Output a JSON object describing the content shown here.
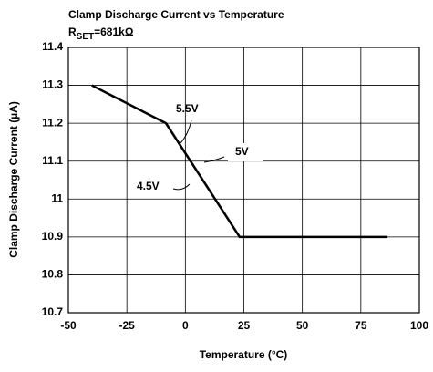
{
  "chart_data": {
    "type": "line",
    "title": "Clamp Discharge Current vs Temperature",
    "subtitle": [
      "R",
      "SET",
      "=681kΩ"
    ],
    "xlabel": "Temperature (°C)",
    "ylabel": "Clamp Discharge Current (µA)",
    "x": [
      -40,
      -8.3,
      23.2,
      86.4
    ],
    "series": [
      {
        "color": "#000000",
        "values": [
          11.3,
          11.2,
          10.9,
          10.9
        ]
      }
    ],
    "xlim": [
      -50,
      100
    ],
    "xticks": [
      -50,
      -25,
      0,
      25,
      50,
      75,
      100
    ],
    "ylim": [
      10.7,
      11.4
    ],
    "yticks": [
      10.7,
      10.8,
      10.9,
      11,
      11.1,
      11.2,
      11.3,
      11.4
    ],
    "grid": true,
    "annotations": [
      "5.5V",
      "5V",
      "4.5V"
    ]
  }
}
